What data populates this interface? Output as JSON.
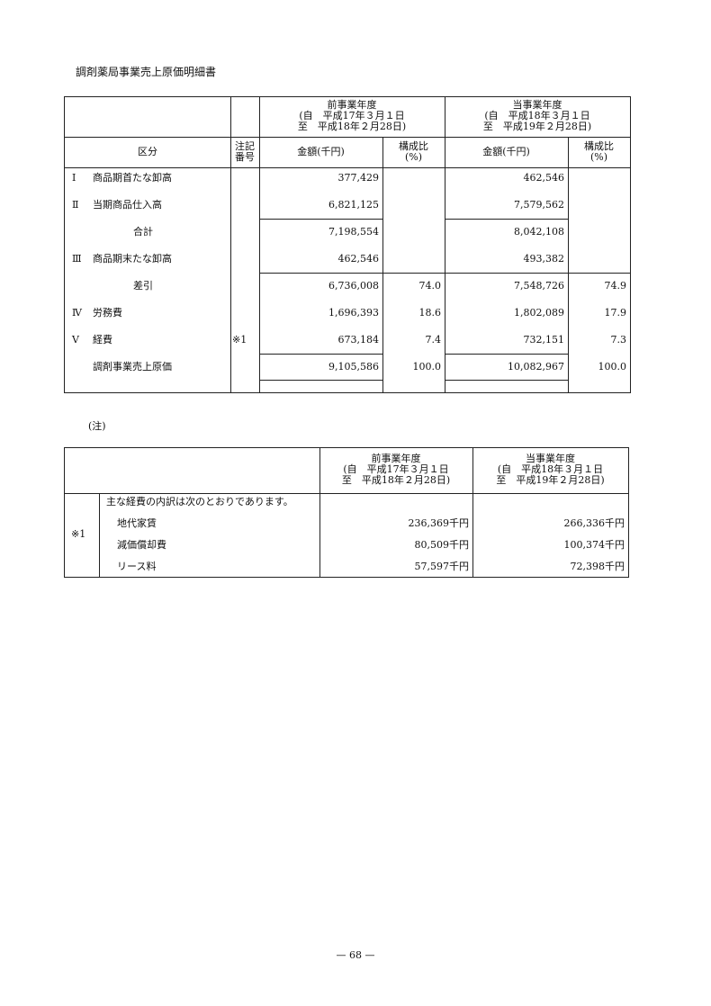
{
  "title": "調剤薬局事業売上原価明細書",
  "table1": {
    "prev_period": {
      "label": "前事業年度",
      "from": "(自　平成17年３月１日",
      "to": "至　平成18年２月28日)"
    },
    "curr_period": {
      "label": "当事業年度",
      "from": "(自　平成18年３月１日",
      "to": "至　平成19年２月28日)"
    },
    "col_category": "区分",
    "col_note": [
      "注記",
      "番号"
    ],
    "col_amount": "金額(千円)",
    "col_ratio": [
      "構成比",
      "(%)"
    ],
    "rows": [
      {
        "num": "Ⅰ",
        "label": "商品期首たな卸高",
        "note": "",
        "prev_amount": "377,429",
        "prev_ratio": "",
        "curr_amount": "462,546",
        "curr_ratio": ""
      },
      {
        "num": "Ⅱ",
        "label": "当期商品仕入高",
        "note": "",
        "prev_amount": "6,821,125",
        "prev_ratio": "",
        "curr_amount": "7,579,562",
        "curr_ratio": ""
      },
      {
        "num": "",
        "label": "合計",
        "note": "",
        "prev_amount": "7,198,554",
        "prev_ratio": "",
        "curr_amount": "8,042,108",
        "curr_ratio": ""
      },
      {
        "num": "Ⅲ",
        "label": "商品期末たな卸高",
        "note": "",
        "prev_amount": "462,546",
        "prev_ratio": "",
        "curr_amount": "493,382",
        "curr_ratio": ""
      },
      {
        "num": "",
        "label": "差引",
        "note": "",
        "prev_amount": "6,736,008",
        "prev_ratio": "74.0",
        "curr_amount": "7,548,726",
        "curr_ratio": "74.9"
      },
      {
        "num": "Ⅳ",
        "label": "労務費",
        "note": "",
        "prev_amount": "1,696,393",
        "prev_ratio": "18.6",
        "curr_amount": "1,802,089",
        "curr_ratio": "17.9"
      },
      {
        "num": "Ⅴ",
        "label": "経費",
        "note": "※1",
        "prev_amount": "673,184",
        "prev_ratio": "7.4",
        "curr_amount": "732,151",
        "curr_ratio": "7.3"
      },
      {
        "num": "",
        "label": "調剤事業売上原価",
        "note": "",
        "prev_amount": "9,105,586",
        "prev_ratio": "100.0",
        "curr_amount": "10,082,967",
        "curr_ratio": "100.0"
      }
    ]
  },
  "notes_heading": "(注)",
  "table2": {
    "prev_period": {
      "label": "前事業年度",
      "from": "(自　平成17年３月１日",
      "to": "至　平成18年２月28日)"
    },
    "curr_period": {
      "label": "当事業年度",
      "from": "(自　平成18年３月１日",
      "to": "至　平成19年２月28日)"
    },
    "mark": "※1",
    "intro": "主な経費の内訳は次のとおりであります。",
    "rows": [
      {
        "label": "地代家賃",
        "prev": "236,369千円",
        "curr": "266,336千円"
      },
      {
        "label": "減価償却費",
        "prev": "80,509千円",
        "curr": "100,374千円"
      },
      {
        "label": "リース料",
        "prev": "57,597千円",
        "curr": "72,398千円"
      }
    ]
  },
  "page_number": "— 68 —"
}
